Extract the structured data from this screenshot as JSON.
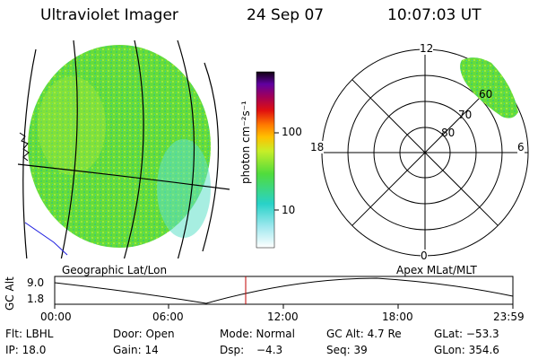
{
  "header": {
    "title": "Ultraviolet Imager",
    "date": "24 Sep 07",
    "time": "10:07:03 UT"
  },
  "colorbar": {
    "unit": "photon cm⁻²s⁻¹",
    "ticks": [
      "100",
      "10"
    ]
  },
  "polar": {
    "mlt_labels": {
      "top": "12",
      "left": "18",
      "right": "6",
      "bottom": "0"
    },
    "lat_labels": [
      "60",
      "70",
      "80"
    ]
  },
  "labels": {
    "left_map": "Geographic Lat/Lon",
    "right_map": "Apex MLat/MLT"
  },
  "timeline": {
    "y_axis": "GC Alt",
    "y_ticks": [
      "9.0",
      "1.8"
    ],
    "x_ticks": [
      "00:00",
      "06:00",
      "12:00",
      "18:00",
      "23:59"
    ]
  },
  "info": {
    "filter": "Flt: LBHL",
    "door": "Door: Open",
    "mode": "Mode: Normal",
    "gc_alt": "GC Alt: 4.7 Re",
    "glat": "GLat: −53.3",
    "ip": "IP: 18.0",
    "gain": "Gain: 14",
    "dsp": "Dsp:",
    "dsp_val": "−4.3",
    "seq": "Seq: 39",
    "glon": "GLon: 354.6"
  },
  "colors": {
    "earth": "#63dc3c",
    "aurora": "#63dc3c",
    "marker": "#c00000"
  }
}
